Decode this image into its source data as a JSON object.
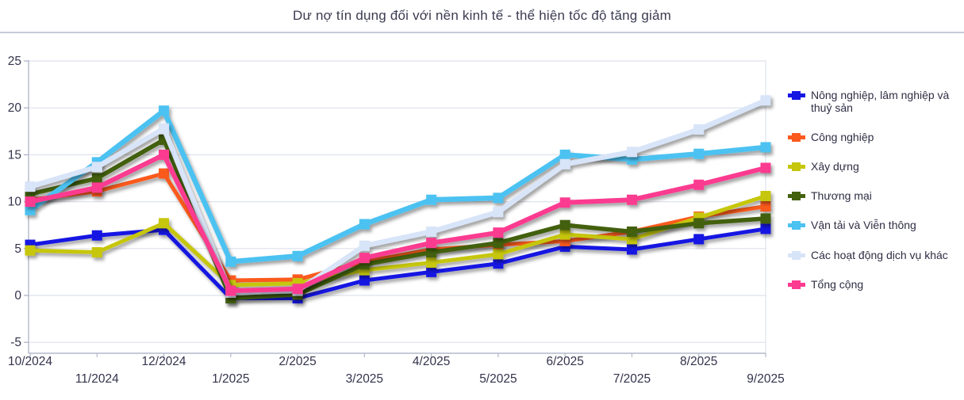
{
  "title": "Dư nợ tín dụng đối với nền kinh tế - thể hiện tốc độ tăng giảm",
  "colors": {
    "background": "#ffffff",
    "title_text": "#3b3b52",
    "axis_text": "#33334d",
    "gridline": "#dfe2ec",
    "axis_line": "#b4b9cb",
    "title_separator": "#c6cbd9"
  },
  "chart_data": {
    "type": "line",
    "title": "Dư nợ tín dụng đối với nền kinh tế - thể hiện tốc độ tăng giảm",
    "xlabel": "",
    "ylabel": "",
    "ylim": [
      -5,
      25
    ],
    "y_ticks": [
      25,
      20,
      15,
      10,
      5,
      0,
      -5
    ],
    "grid": "horizontal",
    "legend_position": "right",
    "marker": "square",
    "x_categories": [
      "10/2024",
      "11/2024",
      "12/2024",
      "1/2025",
      "2/2025",
      "3/2025",
      "4/2025",
      "5/2025",
      "6/2025",
      "7/2025",
      "8/2025",
      "9/2025"
    ],
    "series": [
      {
        "name": "Nông nghiệp, lâm nghiệp và thuỷ sản",
        "color": "#1717e3",
        "line_width": 5,
        "values": [
          5.4,
          6.4,
          7.0,
          -0.3,
          -0.3,
          1.6,
          2.5,
          3.4,
          5.2,
          4.9,
          6.0,
          7.1
        ]
      },
      {
        "name": "Công nghiệp",
        "color": "#fb5a1f",
        "line_width": 5,
        "values": [
          10.2,
          11.1,
          13.0,
          1.6,
          1.7,
          3.6,
          4.9,
          5.4,
          5.8,
          6.8,
          8.4,
          9.5
        ]
      },
      {
        "name": "Xây dựng",
        "color": "#c6c60a",
        "line_width": 5,
        "values": [
          4.8,
          4.6,
          7.7,
          1.1,
          1.3,
          2.7,
          3.5,
          4.4,
          6.5,
          6.0,
          8.3,
          10.6
        ]
      },
      {
        "name": "Thương mại",
        "color": "#43610f",
        "line_width": 5.5,
        "values": [
          10.8,
          12.5,
          16.6,
          -0.3,
          0.1,
          3.3,
          4.6,
          5.6,
          7.5,
          6.8,
          7.7,
          8.2
        ]
      },
      {
        "name": "Vận tải và Viễn thông",
        "color": "#4cc2f1",
        "line_width": 6.5,
        "values": [
          9.1,
          14.2,
          19.7,
          3.6,
          4.2,
          7.6,
          10.2,
          10.4,
          15.0,
          14.5,
          15.1,
          15.8
        ]
      },
      {
        "name": "Các hoạt động dịch vụ khác",
        "color": "#d8e4f8",
        "line_width": 6.5,
        "values": [
          11.6,
          13.7,
          17.8,
          0.3,
          0.5,
          5.3,
          6.8,
          8.9,
          14.0,
          15.3,
          17.7,
          20.8
        ]
      },
      {
        "name": "Tổng cộng",
        "color": "#fb3a90",
        "line_width": 6,
        "values": [
          10.0,
          11.5,
          15.0,
          0.5,
          0.7,
          4.0,
          5.6,
          6.7,
          9.9,
          10.2,
          11.8,
          13.6
        ]
      }
    ]
  }
}
